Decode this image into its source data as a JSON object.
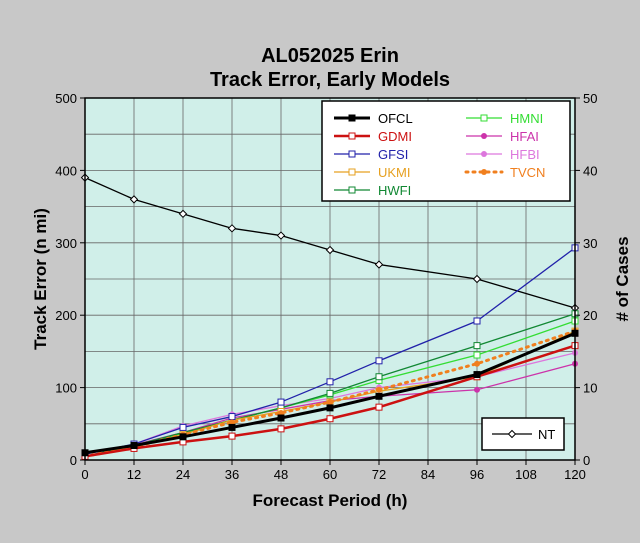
{
  "chart_data": {
    "type": "line",
    "title": "AL052025 Erin",
    "subtitle": "Track Error, Early Models",
    "xlabel": "Forecast Period (h)",
    "ylabel": "Track Error (n mi)",
    "y2label": "# of Cases",
    "x": [
      0,
      12,
      24,
      36,
      48,
      60,
      72,
      84,
      96,
      108,
      120
    ],
    "xlim": [
      0,
      120
    ],
    "ylim": [
      0,
      500
    ],
    "y2lim": [
      0,
      50
    ],
    "xticks": [
      "0",
      "12",
      "24",
      "36",
      "48",
      "60",
      "72",
      "84",
      "96",
      "108",
      "120"
    ],
    "yticks": [
      "0",
      "100",
      "200",
      "300",
      "400",
      "500"
    ],
    "y2ticks": [
      "0",
      "10",
      "20",
      "30",
      "40",
      "50"
    ],
    "grid": true,
    "plot_background": "#d0efe9",
    "series": [
      {
        "name": "OFCL",
        "color": "#000000",
        "marker": "square-filled",
        "style": "solid",
        "width": 3,
        "x": [
          0,
          12,
          24,
          36,
          48,
          60,
          72,
          96,
          120
        ],
        "values": [
          10,
          20,
          32,
          45,
          58,
          72,
          88,
          118,
          175
        ]
      },
      {
        "name": "GDMI",
        "color": "#cc1111",
        "marker": "square-open",
        "style": "solid",
        "width": 2.5,
        "x": [
          0,
          12,
          24,
          36,
          48,
          60,
          72,
          96,
          120
        ],
        "values": [
          5,
          16,
          25,
          33,
          43,
          57,
          73,
          115,
          158
        ]
      },
      {
        "name": "GFSI",
        "color": "#2222aa",
        "marker": "square-open",
        "style": "solid",
        "width": 1.3,
        "x": [
          0,
          12,
          24,
          36,
          48,
          60,
          72,
          96,
          120
        ],
        "values": [
          8,
          22,
          45,
          60,
          80,
          108,
          137,
          192,
          293
        ]
      },
      {
        "name": "UKMI",
        "color": "#e6a020",
        "marker": "square-open",
        "style": "solid",
        "width": 1.3,
        "x": [
          0,
          12,
          24,
          36,
          48,
          60,
          72,
          96,
          120
        ],
        "values": [
          5,
          18,
          35,
          55,
          67,
          80,
          95,
          115,
          178
        ]
      },
      {
        "name": "HWFI",
        "color": "#118833",
        "marker": "square-open",
        "style": "solid",
        "width": 1.3,
        "x": [
          0,
          12,
          24,
          36,
          48,
          60,
          72,
          96,
          120
        ],
        "values": [
          5,
          20,
          38,
          55,
          72,
          92,
          115,
          158,
          202
        ]
      },
      {
        "name": "HMNI",
        "color": "#33dd33",
        "marker": "square-open",
        "style": "solid",
        "width": 1.3,
        "x": [
          0,
          12,
          24,
          36,
          48,
          60,
          72,
          96,
          120
        ],
        "values": [
          5,
          20,
          37,
          55,
          72,
          90,
          110,
          145,
          192
        ]
      },
      {
        "name": "HFAI",
        "color": "#cc33aa",
        "marker": "dot",
        "style": "solid",
        "width": 1.3,
        "x": [
          0,
          12,
          24,
          36,
          48,
          60,
          72,
          96,
          120
        ],
        "values": [
          5,
          21,
          38,
          58,
          70,
          82,
          88,
          97,
          133
        ]
      },
      {
        "name": "HFBI",
        "color": "#dd77dd",
        "marker": "dot",
        "style": "solid",
        "width": 1.3,
        "x": [
          0,
          12,
          24,
          36,
          48,
          60,
          72,
          96,
          120
        ],
        "values": [
          5,
          22,
          47,
          63,
          75,
          85,
          100,
          115,
          148
        ]
      },
      {
        "name": "TVCN",
        "color": "#f07f1e",
        "marker": "dot",
        "style": "dotted",
        "width": 3,
        "x": [
          0,
          12,
          24,
          36,
          48,
          60,
          72,
          96,
          120
        ],
        "values": [
          5,
          18,
          35,
          52,
          65,
          80,
          97,
          133,
          178
        ]
      },
      {
        "name": "NT",
        "color": "#000000",
        "marker": "diamond-open",
        "style": "solid",
        "width": 1.3,
        "axis": "right",
        "x": [
          0,
          12,
          24,
          36,
          48,
          60,
          72,
          96,
          120
        ],
        "values": [
          39,
          36,
          34,
          32,
          31,
          29,
          27,
          25,
          21
        ]
      }
    ],
    "legend": {
      "placement": "top-right",
      "columns": [
        [
          "OFCL",
          "GDMI",
          "GFSI",
          "UKMI",
          "HWFI"
        ],
        [
          "HMNI",
          "HFAI",
          "HFBI",
          "TVCN"
        ]
      ],
      "secondary": "NT",
      "secondary_placement": "bottom-right"
    }
  }
}
